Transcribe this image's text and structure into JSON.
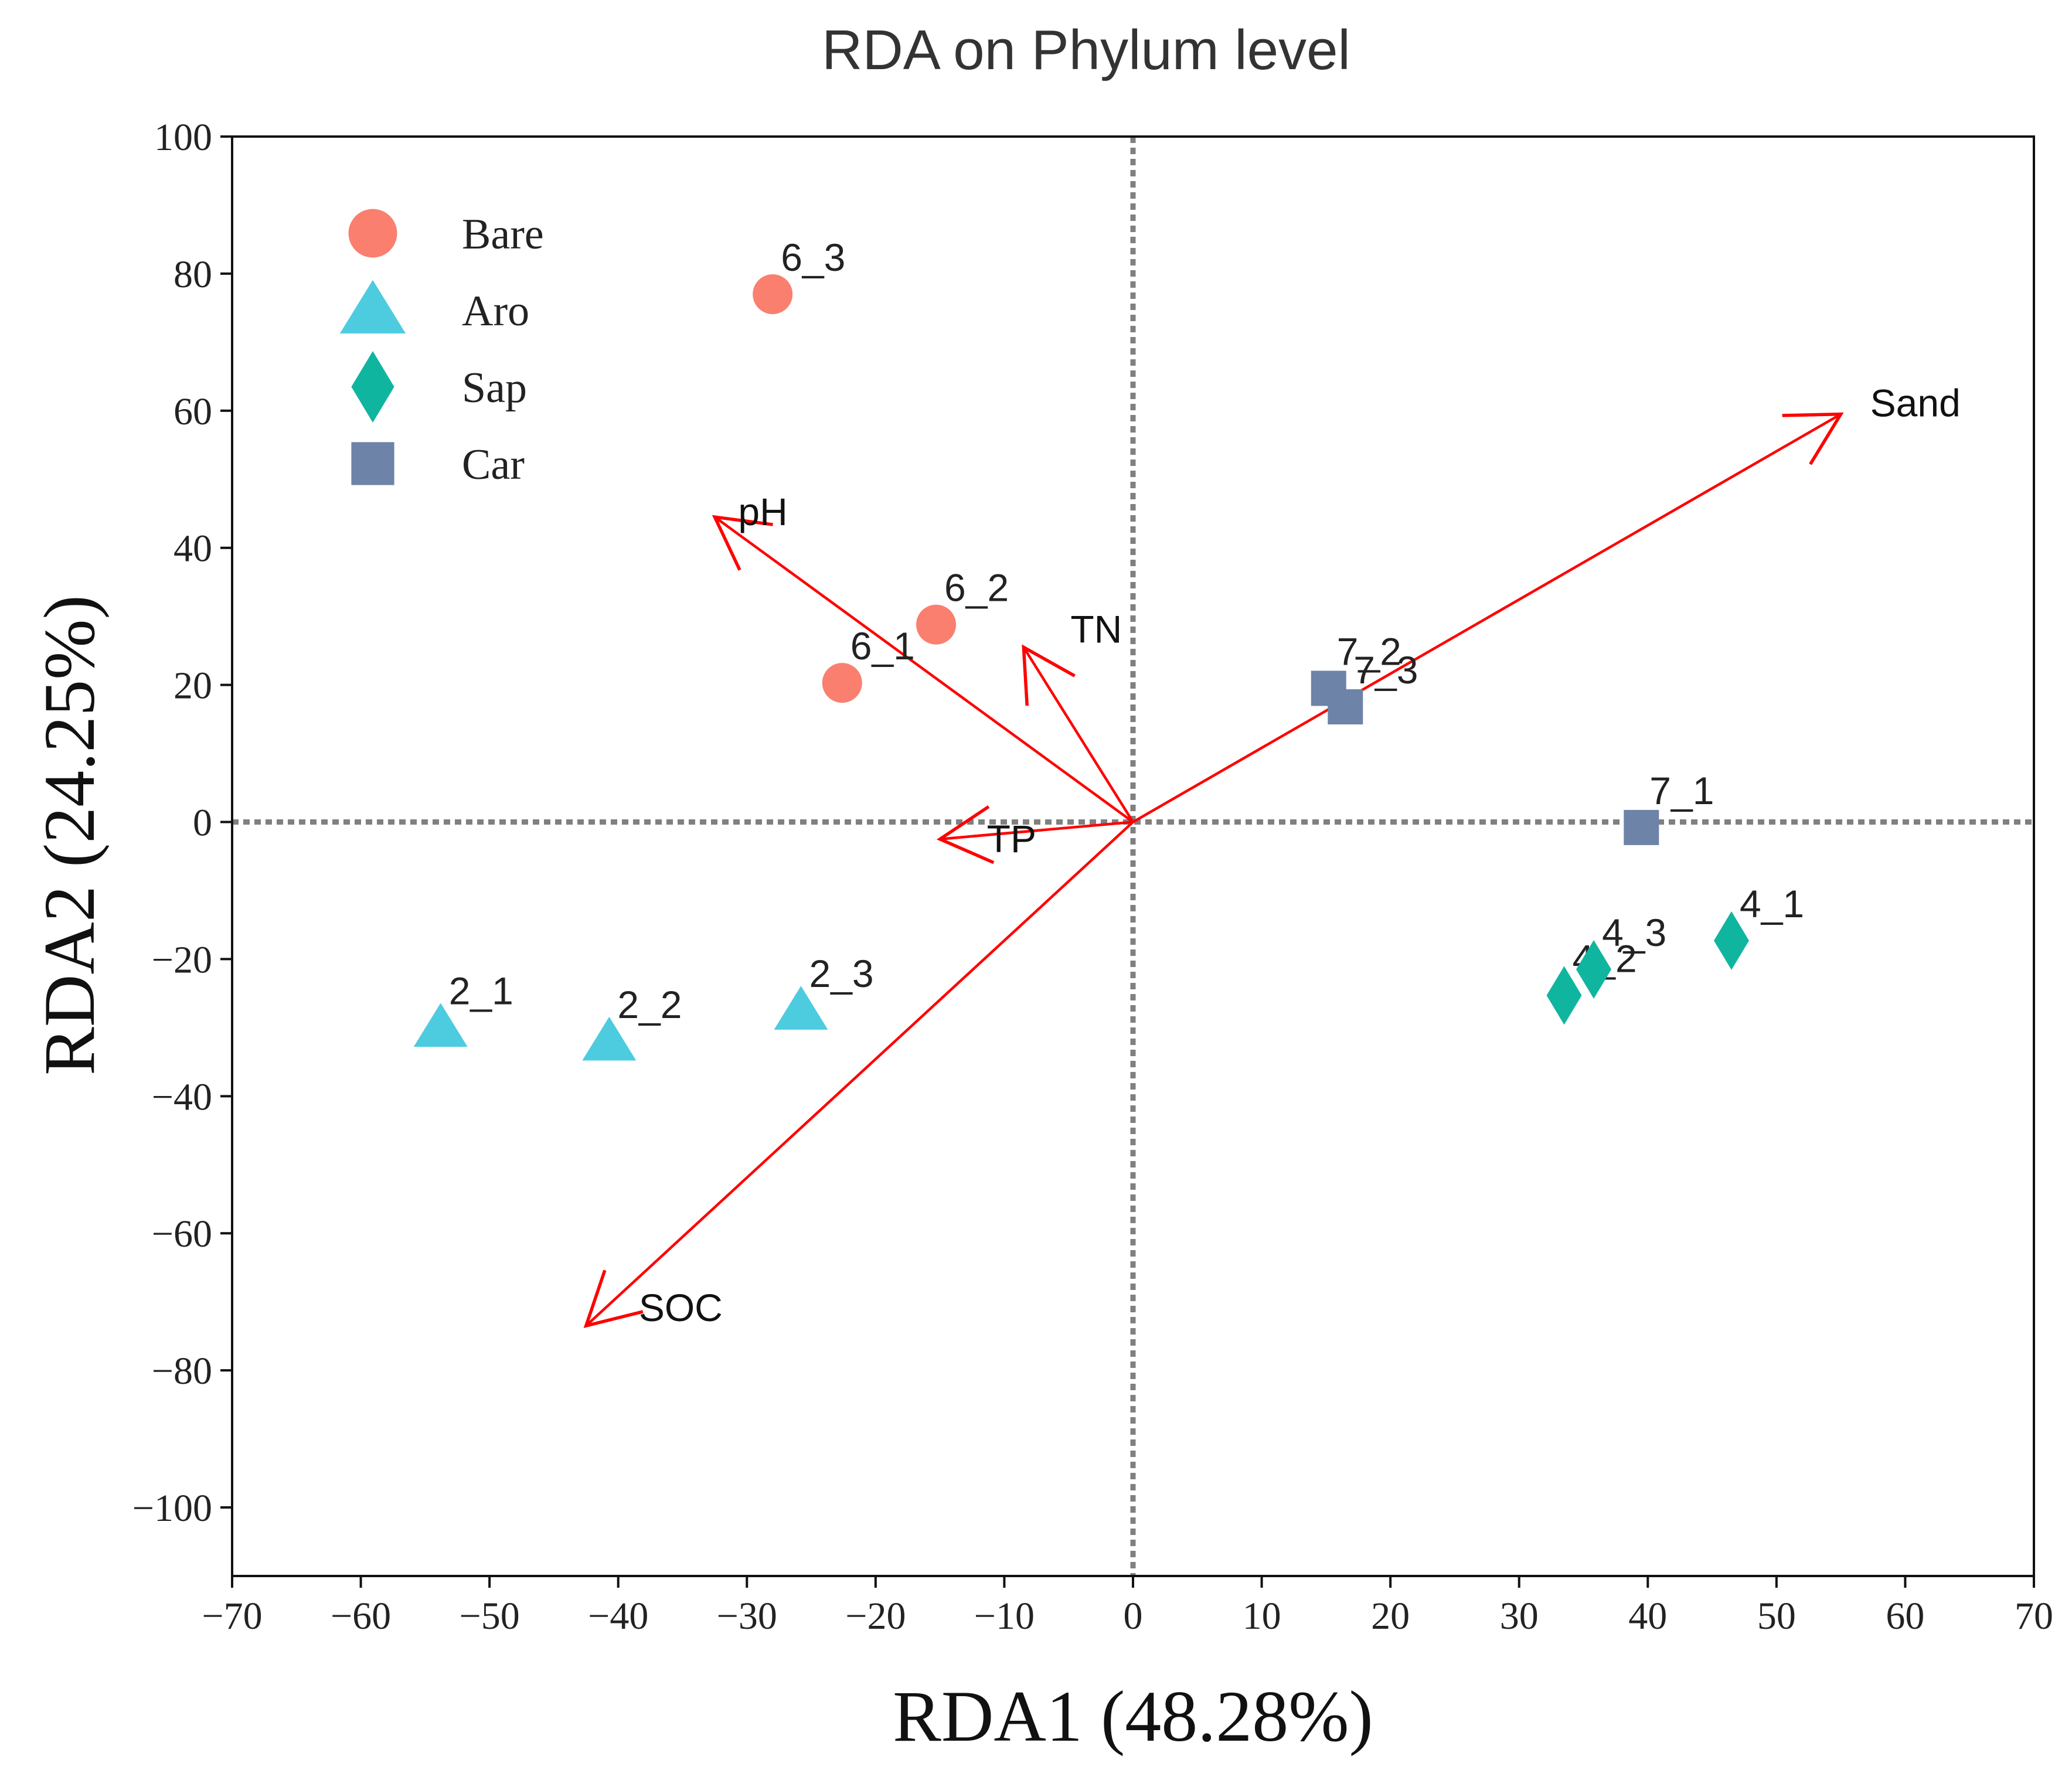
{
  "chart_data": {
    "type": "scatter",
    "title": "RDA on Phylum level",
    "xlabel": "RDA1 (48.28%)",
    "ylabel": "RDA2 (24.25%)",
    "xlim": [
      -70,
      70
    ],
    "ylim": [
      -110,
      100
    ],
    "xticks": [
      -70,
      -60,
      -50,
      -40,
      -30,
      -20,
      -10,
      0,
      10,
      20,
      30,
      40,
      50,
      60,
      70
    ],
    "yticks": [
      -100,
      -80,
      -60,
      -40,
      -20,
      0,
      20,
      40,
      60,
      80,
      100
    ],
    "reference_lines": {
      "x": 0,
      "y": 0,
      "style": "dotted"
    },
    "legend": {
      "position": "top-left",
      "entries": [
        "Bare",
        "Aro",
        "Sap",
        "Car"
      ]
    },
    "series": [
      {
        "name": "Bare",
        "marker": "circle",
        "color": "#FA7F6F",
        "points": [
          {
            "label": "6_3",
            "x": -28.0,
            "y": 77.0
          },
          {
            "label": "6_2",
            "x": -15.3,
            "y": 28.8
          },
          {
            "label": "6_1",
            "x": -22.6,
            "y": 20.3
          }
        ]
      },
      {
        "name": "Aro",
        "marker": "triangle",
        "color": "#4DCCE0",
        "points": [
          {
            "label": "2_1",
            "x": -53.8,
            "y": -30.0
          },
          {
            "label": "2_2",
            "x": -40.7,
            "y": -32.0
          },
          {
            "label": "2_3",
            "x": -25.8,
            "y": -27.5
          }
        ]
      },
      {
        "name": "Sap",
        "marker": "diamond",
        "color": "#10B5A0",
        "points": [
          {
            "label": "4_1",
            "x": 46.5,
            "y": -17.3
          },
          {
            "label": "4_2",
            "x": 33.5,
            "y": -25.3
          },
          {
            "label": "4_3",
            "x": 35.8,
            "y": -21.5
          }
        ]
      },
      {
        "name": "Car",
        "marker": "square",
        "color": "#6E83A8",
        "points": [
          {
            "label": "7_2",
            "x": 15.2,
            "y": 19.5
          },
          {
            "label": "7_3",
            "x": 16.5,
            "y": 16.8
          },
          {
            "label": "7_1",
            "x": 39.5,
            "y": -0.8
          }
        ]
      }
    ],
    "arrows": {
      "color": "#FF0000",
      "items": [
        {
          "label": "Sand",
          "x": 55.0,
          "y": 59.5
        },
        {
          "label": "pH",
          "x": -32.5,
          "y": 44.5
        },
        {
          "label": "TN",
          "x": -8.5,
          "y": 25.5
        },
        {
          "label": "TP",
          "x": -15.0,
          "y": -2.5
        },
        {
          "label": "SOC",
          "x": -42.5,
          "y": -73.5
        }
      ]
    }
  }
}
